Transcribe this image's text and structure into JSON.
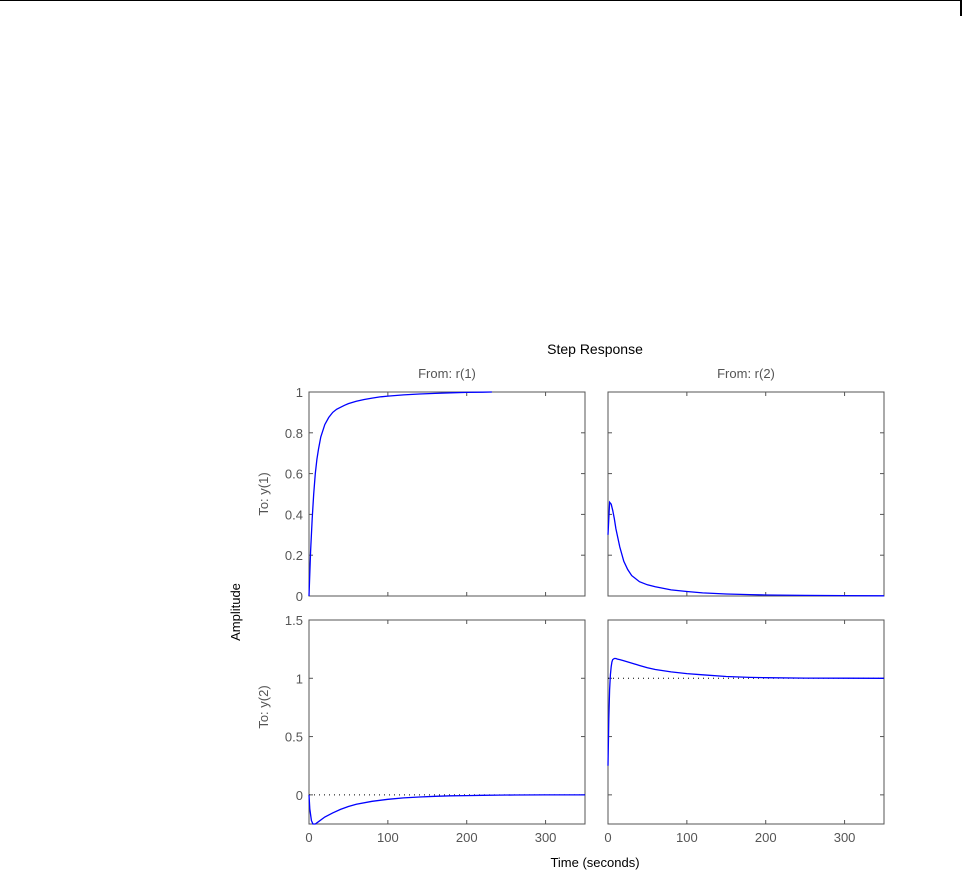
{
  "chart_data": {
    "type": "line",
    "title": "Step Response",
    "xlabel": "Time (seconds)",
    "ylabel": "Amplitude",
    "columns": [
      "From: r(1)",
      "From: r(2)"
    ],
    "rows": [
      "To: y(1)",
      "To: y(2)"
    ],
    "xlim": [
      0,
      350
    ],
    "xticks": [
      0,
      100,
      200,
      300
    ],
    "grid": false,
    "color": "#0000ff",
    "panels": [
      {
        "row": 0,
        "col": 0,
        "ylim": [
          0,
          1
        ],
        "yticks": [
          "0",
          "0.2",
          "0.4",
          "0.6",
          "0.8",
          "1"
        ],
        "x": [
          0,
          2,
          4,
          6,
          8,
          10,
          12,
          15,
          20,
          25,
          30,
          35,
          40,
          45,
          50,
          60,
          70,
          80,
          90,
          100,
          120,
          140,
          160,
          180,
          200,
          220,
          232
        ],
        "y": [
          0.0,
          0.22,
          0.38,
          0.5,
          0.6,
          0.67,
          0.72,
          0.78,
          0.84,
          0.875,
          0.9,
          0.915,
          0.925,
          0.935,
          0.943,
          0.955,
          0.963,
          0.97,
          0.976,
          0.98,
          0.986,
          0.99,
          0.993,
          0.996,
          0.998,
          0.999,
          1.0
        ],
        "steady_state": null
      },
      {
        "row": 0,
        "col": 1,
        "ylim": [
          0,
          1
        ],
        "yticks": [
          "0",
          "0.2",
          "0.4",
          "0.6",
          "0.8",
          "1"
        ],
        "x": [
          0,
          2,
          4,
          6,
          8,
          10,
          15,
          20,
          25,
          30,
          40,
          50,
          60,
          80,
          100,
          120,
          150,
          180,
          200,
          250,
          300,
          350
        ],
        "y": [
          0.3,
          0.46,
          0.45,
          0.42,
          0.38,
          0.33,
          0.24,
          0.17,
          0.13,
          0.1,
          0.07,
          0.055,
          0.045,
          0.03,
          0.022,
          0.015,
          0.01,
          0.007,
          0.005,
          0.003,
          0.002,
          0.001
        ],
        "steady_state": null
      },
      {
        "row": 1,
        "col": 0,
        "ylim": [
          -0.25,
          1.5
        ],
        "yticks": [
          "0",
          "0.5",
          "1",
          "1.5"
        ],
        "ytick_values": [
          0,
          0.5,
          1,
          1.5
        ],
        "x": [
          0,
          1,
          3,
          5,
          8,
          12,
          20,
          30,
          40,
          50,
          60,
          80,
          100,
          120,
          140,
          160,
          180,
          200,
          220,
          240,
          260,
          300,
          350
        ],
        "y": [
          0.0,
          -0.12,
          -0.22,
          -0.25,
          -0.25,
          -0.23,
          -0.19,
          -0.155,
          -0.125,
          -0.1,
          -0.08,
          -0.055,
          -0.038,
          -0.026,
          -0.018,
          -0.012,
          -0.008,
          -0.006,
          -0.004,
          -0.002,
          -0.001,
          0.0,
          0.0
        ],
        "steady_state": 0
      },
      {
        "row": 1,
        "col": 1,
        "ylim": [
          -0.25,
          1.5
        ],
        "yticks": [
          "0",
          "0.5",
          "1",
          "1.5"
        ],
        "ytick_values": [
          0,
          0.5,
          1,
          1.5
        ],
        "x": [
          0,
          1,
          2,
          3,
          4,
          5,
          6,
          8,
          10,
          12,
          15,
          20,
          30,
          40,
          50,
          60,
          80,
          100,
          120,
          150,
          180,
          200,
          250,
          300,
          350
        ],
        "y": [
          0.25,
          0.65,
          0.9,
          1.03,
          1.1,
          1.14,
          1.16,
          1.17,
          1.17,
          1.165,
          1.16,
          1.15,
          1.13,
          1.11,
          1.09,
          1.075,
          1.055,
          1.04,
          1.03,
          1.015,
          1.008,
          1.005,
          1.002,
          1.001,
          1.0
        ],
        "steady_state": 1
      }
    ]
  }
}
